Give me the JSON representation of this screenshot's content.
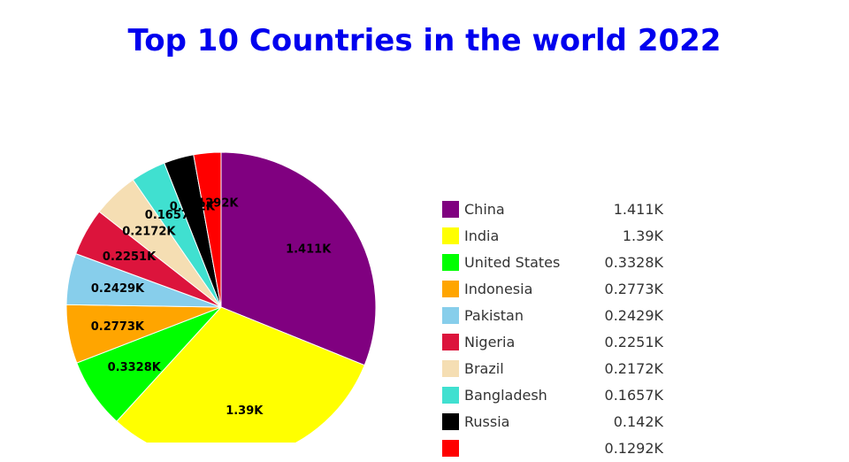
{
  "chart_data": {
    "type": "pie",
    "title": "Top 10 Countries in the world 2022",
    "slices": [
      {
        "label": "China",
        "value": 1411,
        "display": "1.411K",
        "color": "#800080"
      },
      {
        "label": "India",
        "value": 1390,
        "display": "1.39K",
        "color": "#ffff00"
      },
      {
        "label": "United States",
        "value": 332.8,
        "display": "0.3328K",
        "color": "#00ff00"
      },
      {
        "label": "Indonesia",
        "value": 277.3,
        "display": "0.2773K",
        "color": "#ffa500"
      },
      {
        "label": "Pakistan",
        "value": 242.9,
        "display": "0.2429K",
        "color": "#87ceeb"
      },
      {
        "label": "Nigeria",
        "value": 225.1,
        "display": "0.2251K",
        "color": "#dc143c"
      },
      {
        "label": "Brazil",
        "value": 217.2,
        "display": "0.2172K",
        "color": "#f5deb3"
      },
      {
        "label": "Bangladesh",
        "value": 165.7,
        "display": "0.1657K",
        "color": "#40e0d0"
      },
      {
        "label": "Russia",
        "value": 142,
        "display": "0.142K",
        "color": "#000000"
      },
      {
        "label": "",
        "value": 129.2,
        "display": "0.1292K",
        "color": "#ff0000"
      }
    ],
    "legend_position": "right"
  }
}
